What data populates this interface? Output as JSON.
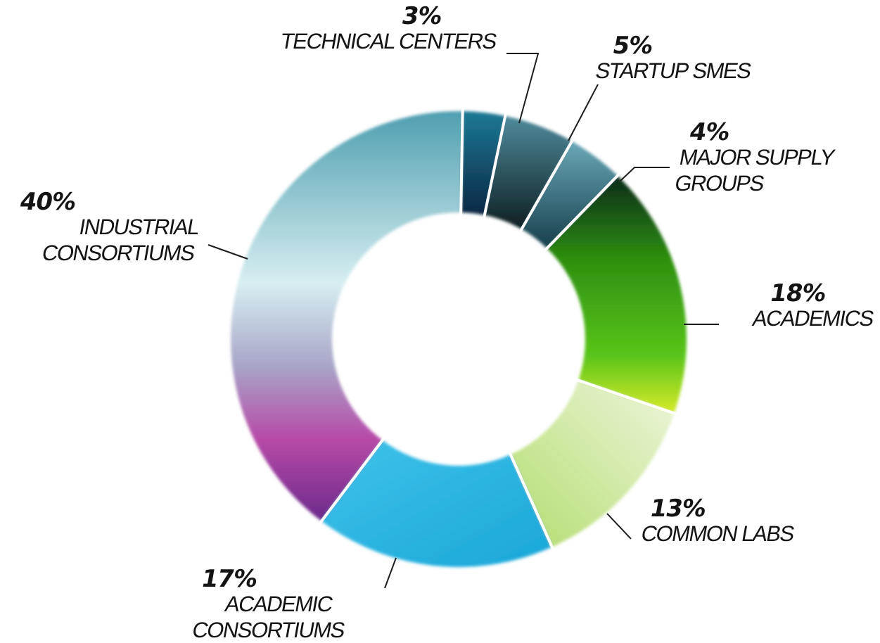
{
  "chart_data": {
    "type": "pie",
    "variant": "donut",
    "slices": [
      {
        "label": "TECHNICAL CENTERS",
        "label_lines": [
          "TECHNICAL CENTERS"
        ],
        "value": 3,
        "value_label": "3%",
        "color": "#0d3a55"
      },
      {
        "label": "STARTUP SMES",
        "label_lines": [
          "STARTUP SMES"
        ],
        "value": 5,
        "value_label": "5%",
        "color": "#0f2930"
      },
      {
        "label": "MAJOR SUPPLY GROUPS",
        "label_lines": [
          "MAJOR SUPPLY",
          "GROUPS"
        ],
        "value": 4,
        "value_label": "4%",
        "color": "#2c6172"
      },
      {
        "label": "ACADEMICS",
        "label_lines": [
          "ACADEMICS"
        ],
        "value": 18,
        "value_label": "18%",
        "color": "#3f9e0e"
      },
      {
        "label": "COMMON LABS",
        "label_lines": [
          "COMMON LABS"
        ],
        "value": 13,
        "value_label": "13%",
        "color": "#c8e79a"
      },
      {
        "label": "ACADEMIC CONSORTIUMS",
        "label_lines": [
          "ACADEMIC",
          "CONSORTIUMS"
        ],
        "value": 17,
        "value_label": "17%",
        "color": "#22b8e3"
      },
      {
        "label": "INDUSTRIAL CONSORTIUMS",
        "label_lines": [
          "INDUSTRIAL",
          "CONSORTIUMS"
        ],
        "value": 40,
        "value_label": "40%",
        "color": "#85c2cf"
      }
    ],
    "title": "",
    "legend": "none",
    "data_labels": "outside-with-leader-lines"
  }
}
